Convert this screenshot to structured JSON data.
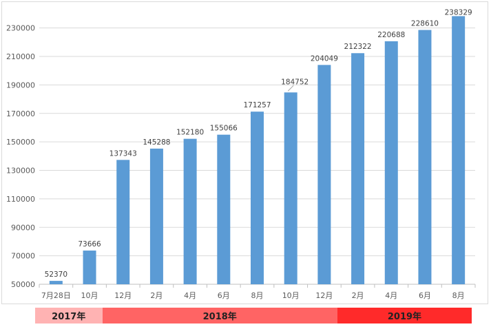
{
  "chart_data": {
    "type": "bar",
    "categories": [
      "7月28日",
      "10月",
      "12月",
      "2月",
      "4月",
      "6月",
      "8月",
      "10月",
      "12月",
      "2月",
      "4月",
      "6月",
      "8月"
    ],
    "series": [
      {
        "values": [
          52370,
          73666,
          137343,
          145288,
          152180,
          155066,
          171257,
          184752,
          204049,
          212322,
          220688,
          228610,
          238329
        ]
      }
    ],
    "data_labels": [
      "52370",
      "73666",
      "137343",
      "145288",
      "152180",
      "155066",
      "171257",
      "184752",
      "204049",
      "212322",
      "220688",
      "228610",
      "238329"
    ],
    "yticks": [
      50000,
      70000,
      90000,
      110000,
      130000,
      150000,
      170000,
      190000,
      210000,
      230000
    ],
    "ytick_labels": [
      "50000",
      "70000",
      "90000",
      "110000",
      "130000",
      "150000",
      "170000",
      "190000",
      "210000",
      "230000"
    ],
    "ylim": [
      50000,
      240000
    ],
    "grid": true,
    "bar_color": "#5b9bd5",
    "grid_color": "#d9d9d9"
  },
  "year_groups": [
    {
      "label": "2017年",
      "start_index": 0,
      "end_index": 2,
      "color": "#ffb3b3"
    },
    {
      "label": "2018年",
      "start_index": 2,
      "end_index": 9,
      "color": "#ff6464"
    },
    {
      "label": "2019年",
      "start_index": 9,
      "end_index": 13,
      "color": "#ff2a2a"
    }
  ]
}
